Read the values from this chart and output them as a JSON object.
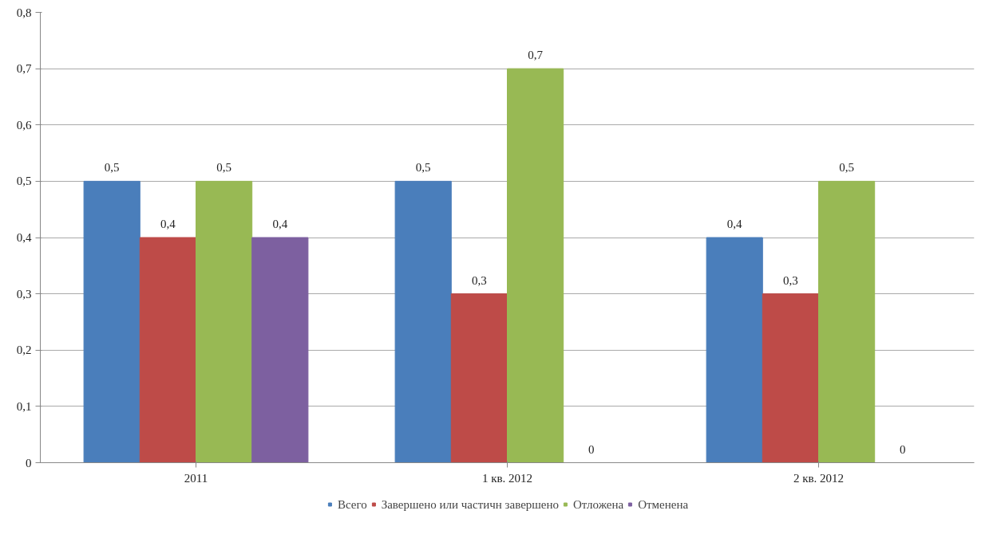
{
  "chart_data": {
    "type": "bar",
    "categories": [
      "2011",
      "1 кв. 2012",
      "2 кв. 2012"
    ],
    "series": [
      {
        "name": "Всего",
        "color": "#4a7ebb",
        "values": [
          0.5,
          0.5,
          0.4
        ],
        "value_labels": [
          "0,5",
          "0,5",
          "0,4"
        ]
      },
      {
        "name": "Завершено или частичн завершено",
        "color": "#be4b48",
        "values": [
          0.4,
          0.3,
          0.3
        ],
        "value_labels": [
          "0,4",
          "0,3",
          "0,3"
        ]
      },
      {
        "name": "Отложена",
        "color": "#98b954",
        "values": [
          0.5,
          0.7,
          0.5
        ],
        "value_labels": [
          "0,5",
          "0,7",
          "0,5"
        ]
      },
      {
        "name": "Отменена",
        "color": "#7d60a0",
        "values": [
          0.4,
          0,
          0
        ],
        "value_labels": [
          "0,4",
          "0",
          "0"
        ]
      }
    ],
    "ylim": [
      0,
      0.8
    ],
    "yticks": [
      0,
      {
        "value": 0.1,
        "label": "0,1"
      },
      {
        "value": 0.2,
        "label": "0,2"
      },
      {
        "value": 0.3,
        "label": "0,3"
      },
      {
        "value": 0.4,
        "label": "0,4"
      },
      {
        "value": 0.5,
        "label": "0,5"
      },
      {
        "value": 0.6,
        "label": "0,6"
      },
      {
        "value": 0.7,
        "label": "0,7"
      },
      {
        "value": 0.8,
        "label": "0,8"
      }
    ],
    "grid": "y",
    "legend": "bottom"
  }
}
